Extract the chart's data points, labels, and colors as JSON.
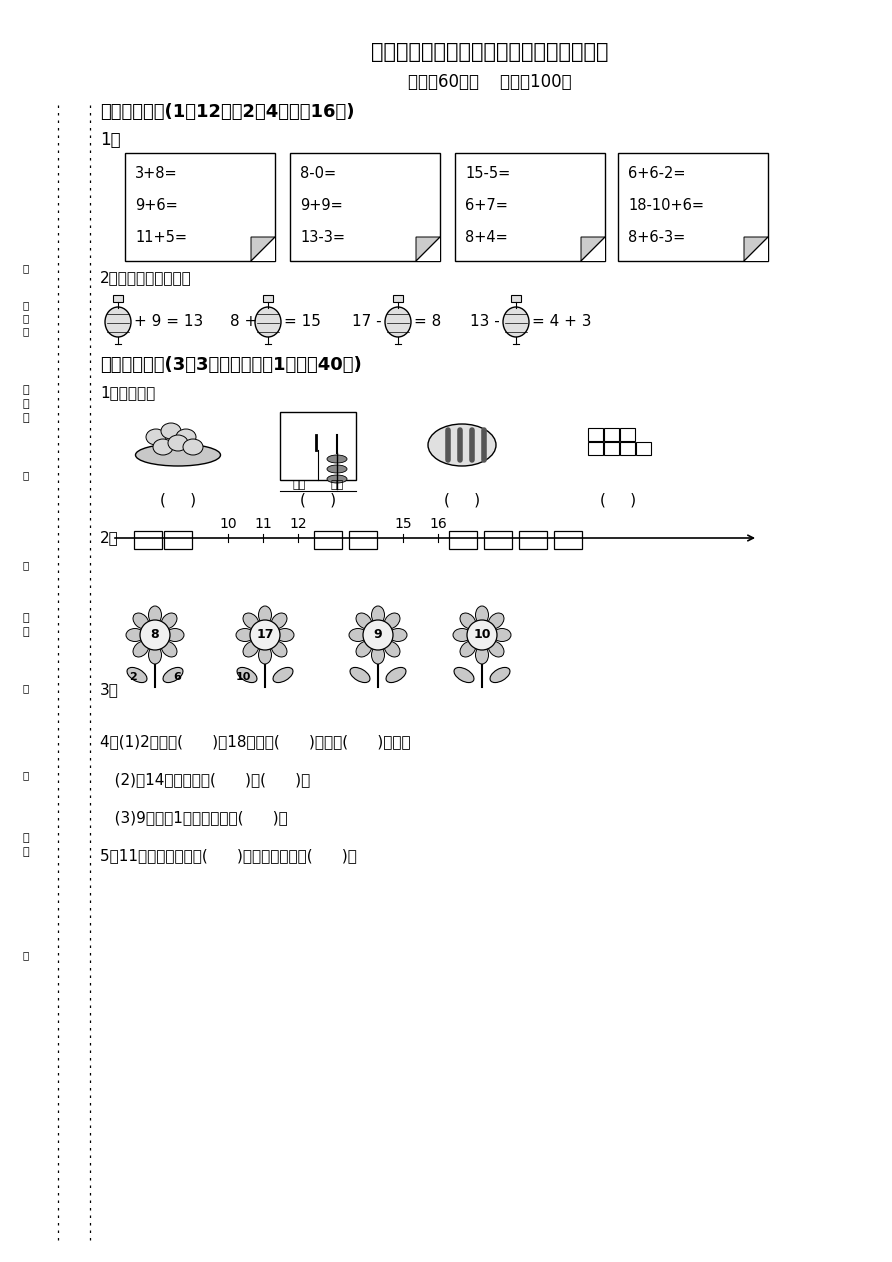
{
  "title": "人教版一年级（上）数学期末测试卷（一）",
  "subtitle": "时间：60分钟    满分：100分",
  "section1_title": "一、算一算。(1题12分，2题4分，共16分)",
  "section2_title": "二、填一填。(3题3分，其余每空1分，共40分)",
  "bg_color": "#ffffff",
  "text_color": "#000000",
  "box_equations": [
    [
      "3+8=",
      "9+6=",
      "11+5="
    ],
    [
      "8-0=",
      "9+9=",
      "13-3="
    ],
    [
      "15-5=",
      "6+7=",
      "8+4="
    ],
    [
      "6+6-2=",
      "18-10+6=",
      "8+6-3="
    ]
  ],
  "q1_label": "1．",
  "q2_label": "2．猜灯谜，填一填。",
  "sec2_q1_label": "1．数一数。",
  "sec2_q2_label": "2．",
  "sec2_q3_label": "3．",
  "sec2_q4_1": "4．(1)2个十是(      )，18里面有(      )个十和(      )个一。",
  "sec2_q4_2": "   (2)和14相邻的数是(      )和(      )。",
  "sec2_q4_3": "   (3)9个一和1个十合起来是(      )。",
  "sec2_q5": "5．11的前面一个数是(      )，后面一个数是(      )。"
}
